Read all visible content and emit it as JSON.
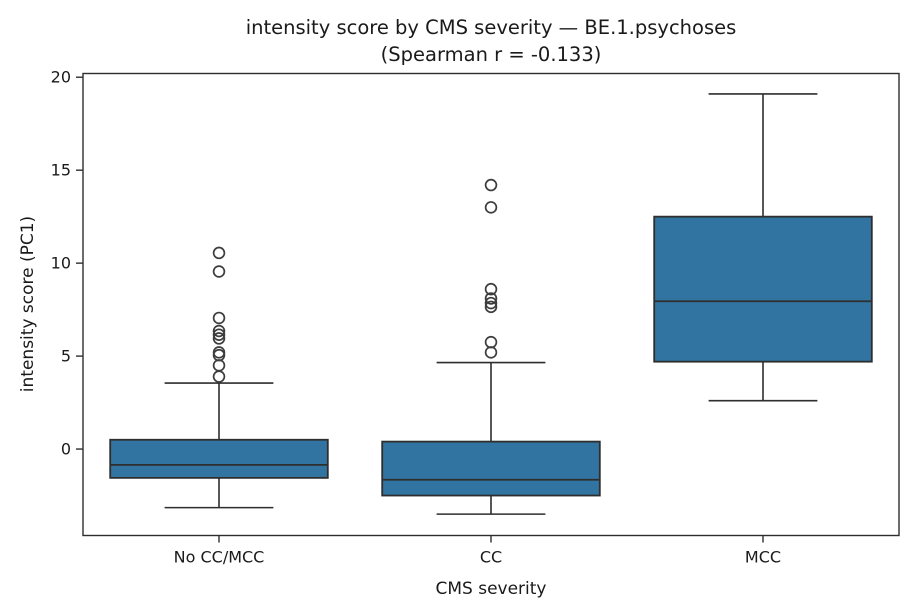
{
  "figure": {
    "background": "#ffffff"
  },
  "chart_data": {
    "type": "box",
    "title": "intensity score by CMS severity — BE.1.psychoses",
    "subtitle": "(Spearman r = -0.133)",
    "xlabel": "CMS severity",
    "ylabel": "intensity score (PC1)",
    "categories": [
      "No CC/MCC",
      "CC",
      "MCC"
    ],
    "yticks": [
      0,
      5,
      10,
      15,
      20
    ],
    "ylim": [
      -4.65,
      20.2
    ],
    "xlim": [
      -0.5,
      2.5
    ],
    "box_width": 0.8,
    "grid": false,
    "legend": null,
    "boxes": [
      {
        "category": "No CC/MCC",
        "whisker_low": -3.15,
        "q1": -1.55,
        "median": -0.85,
        "q3": 0.5,
        "whisker_high": 3.55,
        "outliers": [
          3.9,
          4.5,
          5.05,
          5.2,
          5.95,
          6.15,
          6.35,
          7.05,
          9.55,
          10.55
        ]
      },
      {
        "category": "CC",
        "whisker_low": -3.5,
        "q1": -2.5,
        "median": -1.65,
        "q3": 0.4,
        "whisker_high": 4.65,
        "outliers": [
          5.2,
          5.75,
          7.65,
          7.85,
          8.1,
          8.6,
          13.0,
          14.2
        ]
      },
      {
        "category": "MCC",
        "whisker_low": 2.6,
        "q1": 4.7,
        "median": 7.95,
        "q3": 12.5,
        "whisker_high": 19.1,
        "outliers": []
      }
    ],
    "style": {
      "box_fill": "#3274a1",
      "line_color": "#2e2e2e",
      "flier_color": "#3d3d3d",
      "text_color": "#1a1a1a"
    }
  }
}
